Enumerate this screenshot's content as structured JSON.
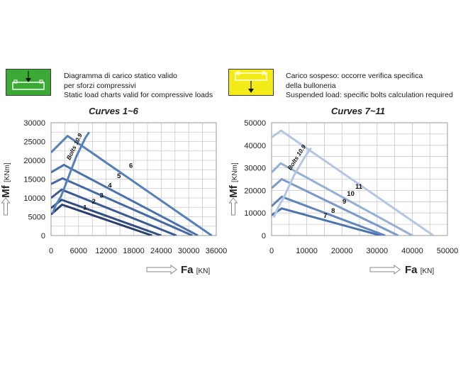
{
  "legend": {
    "compressive": {
      "color": "#3aaa35",
      "icon": "compressive-load-icon",
      "lines": [
        "Diagramma di carico statico valido",
        "per sforzi compressivi",
        "Static load charts valid for compressive loads"
      ]
    },
    "suspended": {
      "color": "#f3ec19",
      "icon": "suspended-load-icon",
      "lines": [
        "Carico sospeso: occorre verifica specifica",
        "della bulloneria",
        "Suspended load:  specific bolts calculation required"
      ]
    }
  },
  "chart_data": [
    {
      "type": "line",
      "title": "Curves 1~6",
      "ylabel": "Mf",
      "yunit": "[KNm]",
      "xlabel": "Fa",
      "xunit": "[KN]",
      "xlim": [
        0,
        36000
      ],
      "ylim": [
        0,
        30000
      ],
      "xticks": [
        "0",
        "6000",
        "12000",
        "18000",
        "24000",
        "30000",
        "36000"
      ],
      "yticks": [
        "0",
        "5000",
        "10000",
        "15000",
        "20000",
        "25000",
        "30000"
      ],
      "grid": true,
      "bolts_label": "Bolts 10.9",
      "bolts_line": [
        [
          300,
          5800
        ],
        [
          1000,
          8000
        ],
        [
          2200,
          10500
        ],
        [
          3300,
          14000
        ],
        [
          4500,
          17800
        ],
        [
          5500,
          21000
        ],
        [
          6500,
          23500
        ],
        [
          7500,
          26000
        ],
        [
          8300,
          27500
        ]
      ],
      "series": [
        {
          "name": "1",
          "color": "#2a3f6e",
          "points": [
            [
              0,
              5600
            ],
            [
              2400,
              8200
            ],
            [
              22000,
              0
            ]
          ],
          "label_at": [
            7400,
            6900
          ]
        },
        {
          "name": "2",
          "color": "#314d82",
          "points": [
            [
              0,
              7300
            ],
            [
              2300,
              9500
            ],
            [
              24000,
              0
            ]
          ],
          "label_at": [
            9300,
            8500
          ]
        },
        {
          "name": "3",
          "color": "#3b5a94",
          "points": [
            [
              0,
              10000
            ],
            [
              2300,
              12200
            ],
            [
              27300,
              0
            ]
          ],
          "label_at": [
            11000,
            10100
          ]
        },
        {
          "name": "4",
          "color": "#4469a4",
          "points": [
            [
              0,
              13700
            ],
            [
              2500,
              15200
            ],
            [
              30800,
              0
            ]
          ],
          "label_at": [
            12800,
            12700
          ]
        },
        {
          "name": "5",
          "color": "#4a72ad",
          "points": [
            [
              0,
              16800
            ],
            [
              2800,
              18800
            ],
            [
              32000,
              0
            ]
          ],
          "label_at": [
            14800,
            15300
          ]
        },
        {
          "name": "6",
          "color": "#5680b8",
          "points": [
            [
              0,
              22100
            ],
            [
              3600,
              26500
            ],
            [
              35000,
              0
            ]
          ],
          "label_at": [
            17400,
            18000
          ]
        }
      ]
    },
    {
      "type": "line",
      "title": "Curves 7~11",
      "ylabel": "Mf",
      "yunit": "[KNm]",
      "xlabel": "Fa",
      "xunit": "[KN]",
      "xlim": [
        0,
        50000
      ],
      "ylim": [
        0,
        50000
      ],
      "xticks": [
        "0",
        "10000",
        "20000",
        "30000",
        "40000",
        "50000"
      ],
      "yticks": [
        "0",
        "10000",
        "20000",
        "30000",
        "40000",
        "50000"
      ],
      "grid": true,
      "bolts_label": "Bolts 10.9",
      "bolts_line": [
        [
          600,
          8000
        ],
        [
          1900,
          12500
        ],
        [
          3500,
          17000
        ],
        [
          5000,
          22000
        ],
        [
          6500,
          27000
        ],
        [
          8000,
          31000
        ],
        [
          9500,
          35000
        ],
        [
          11200,
          38800
        ]
      ],
      "series": [
        {
          "name": "7",
          "color": "#4b73ae",
          "points": [
            [
              0,
              9000
            ],
            [
              2900,
              12000
            ],
            [
              31000,
              0
            ]
          ],
          "label_at": [
            15300,
            7800
          ]
        },
        {
          "name": "8",
          "color": "#6085bb",
          "points": [
            [
              0,
              13000
            ],
            [
              2900,
              17200
            ],
            [
              32300,
              0
            ]
          ],
          "label_at": [
            17500,
            10000
          ]
        },
        {
          "name": "9",
          "color": "#7b9ac8",
          "points": [
            [
              0,
              21000
            ],
            [
              2900,
              25000
            ],
            [
              36000,
              0
            ]
          ],
          "label_at": [
            20700,
            14100
          ]
        },
        {
          "name": "10",
          "color": "#96afd5",
          "points": [
            [
              0,
              28000
            ],
            [
              2600,
              32000
            ],
            [
              40000,
              0
            ]
          ],
          "label_at": [
            22500,
            17600
          ]
        },
        {
          "name": "11",
          "color": "#b3c6e2",
          "points": [
            [
              0,
              43500
            ],
            [
              2700,
              46500
            ],
            [
              46000,
              0
            ]
          ],
          "label_at": [
            24800,
            20800
          ]
        }
      ]
    }
  ]
}
